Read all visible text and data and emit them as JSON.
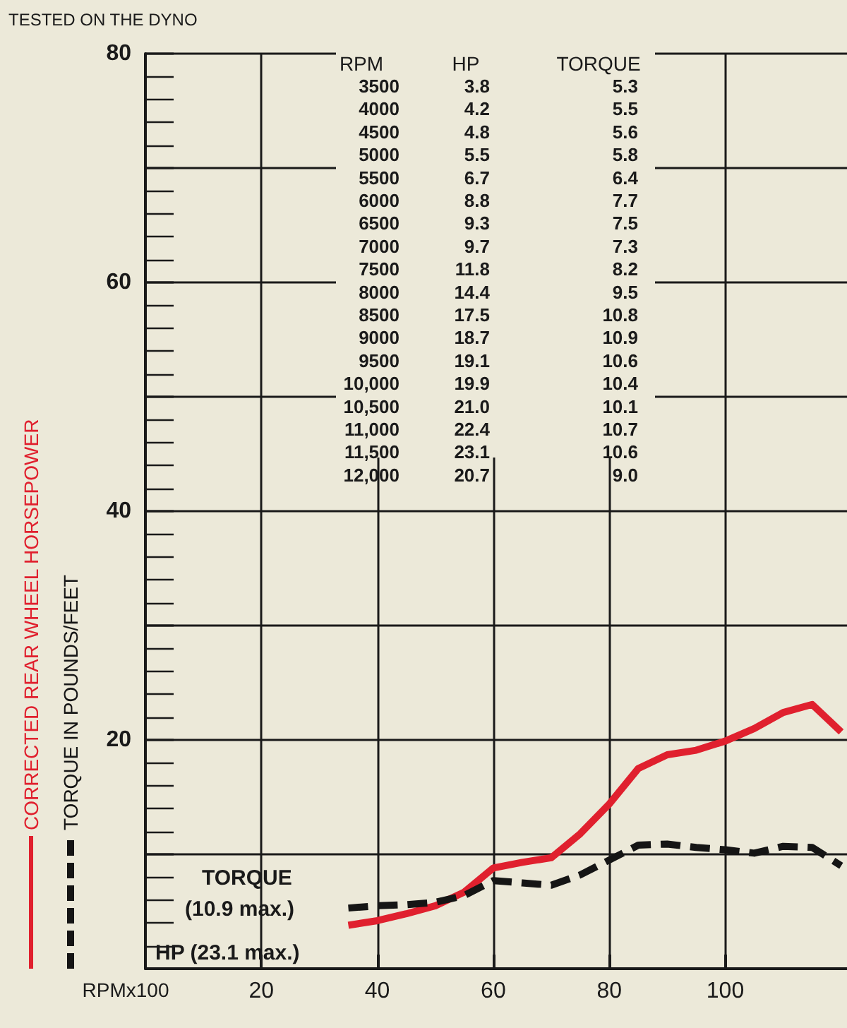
{
  "chart_data": {
    "type": "line",
    "title": "TESTED ON THE DYNO",
    "xlabel": "RPMx100",
    "x": [
      35,
      40,
      45,
      50,
      55,
      60,
      65,
      70,
      75,
      80,
      85,
      90,
      95,
      100,
      105,
      110,
      115,
      120
    ],
    "series": [
      {
        "name": "CORRECTED REAR WHEEL HORSEPOWER",
        "color": "#e0202e",
        "line_style": "solid",
        "values": [
          3.8,
          4.2,
          4.8,
          5.5,
          6.7,
          8.8,
          9.3,
          9.7,
          11.8,
          14.4,
          17.5,
          18.7,
          19.1,
          19.9,
          21.0,
          22.4,
          23.1,
          20.7
        ]
      },
      {
        "name": "TORQUE IN POUNDS/FEET",
        "color": "#151515",
        "line_style": "dashed",
        "values": [
          5.3,
          5.5,
          5.6,
          5.8,
          6.4,
          7.7,
          7.5,
          7.3,
          8.2,
          9.5,
          10.8,
          10.9,
          10.6,
          10.4,
          10.1,
          10.7,
          10.6,
          9.0
        ]
      }
    ],
    "xlim": [
      0,
      121
    ],
    "xticks": [
      20,
      40,
      60,
      80,
      100
    ],
    "ylim": [
      0,
      80
    ],
    "yticks": [
      {
        "value": 10,
        "label": null
      },
      20,
      {
        "value": 30,
        "label": null
      },
      40,
      {
        "value": 50,
        "label": null
      },
      60,
      {
        "value": 70,
        "label": null
      },
      80
    ],
    "grid": true,
    "legend": "left",
    "marker": "none",
    "annotations": [
      "RPM",
      "HP",
      "TORQUE",
      "TORQUE",
      "(10.9 max.)",
      "HP (23.1 max.)",
      "3500",
      "3.8",
      "5.3",
      "4000",
      "4.2",
      "5.5",
      "4500",
      "4.8",
      "5.6",
      "5000",
      "5.5",
      "5.8",
      "5500",
      "6.7",
      "6.4",
      "6000",
      "8.8",
      "7.7",
      "6500",
      "9.3",
      "7.5",
      "7000",
      "9.7",
      "7.3",
      "7500",
      "11.8",
      "8.2",
      "8000",
      "14.4",
      "9.5",
      "8500",
      "17.5",
      "10.8",
      "9000",
      "18.7",
      "10.9",
      "9500",
      "19.1",
      "10.6",
      "10,000",
      "19.9",
      "10.4",
      "10,500",
      "21.0",
      "10.1",
      "11,000",
      "22.4",
      "10.7",
      "11,500",
      "23.1",
      "10.6",
      "12,000",
      "20.7",
      "9.0"
    ]
  }
}
